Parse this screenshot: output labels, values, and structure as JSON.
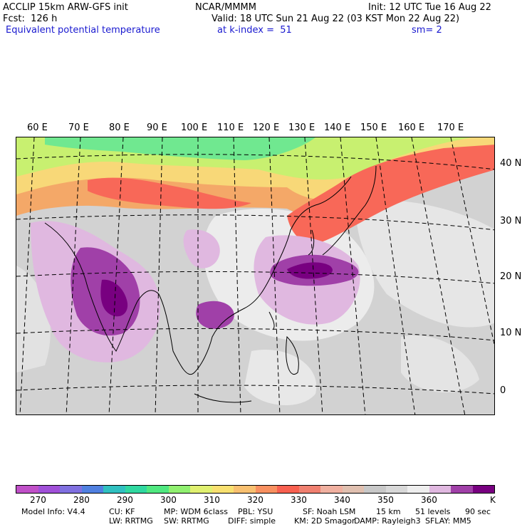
{
  "header": {
    "model": "ACCLIP 15km ARW-GFS init",
    "center": "NCAR/MMMM",
    "init": "Init: 12 UTC Tue 16 Aug 22",
    "fcst": "Fcst:  126 h",
    "valid": "Valid: 18 UTC Sun 21 Aug 22 (03 KST Mon 22 Aug 22)",
    "field": "Equivalent potential temperature",
    "level": "at k-index =  51",
    "smooth": "sm= 2"
  },
  "lon_labels": [
    "60 E",
    "70 E",
    "80 E",
    "90 E",
    "100 E",
    "110 E",
    "120 E",
    "130 E",
    "140 E",
    "150 E",
    "160 E",
    "170 E"
  ],
  "lat_labels": [
    "40 N",
    "30 N",
    "20 N",
    "10 N",
    "0"
  ],
  "colorbar": {
    "colors": [
      "#c050c8",
      "#a050d8",
      "#8070e0",
      "#5080e0",
      "#30c0c0",
      "#30d8a0",
      "#50e880",
      "#90f070",
      "#e0f070",
      "#f8e070",
      "#f8c070",
      "#f89060",
      "#f86050",
      "#f08070",
      "#f0b0a0",
      "#e0c0b0",
      "#c8c8c8",
      "#d8d8d8",
      "#eeeeee",
      "#e0b8e0",
      "#a040a8",
      "#780080"
    ],
    "labels": [
      "270",
      "280",
      "290",
      "300",
      "310",
      "320",
      "330",
      "340",
      "350",
      "360"
    ],
    "unit": "K"
  },
  "model_info": {
    "line1": [
      "Model Info: V4.4",
      "CU: KF",
      "MP: WDM 6class",
      "PBL: YSU",
      "SF: Noah LSM",
      "15 km",
      "51 levels",
      "90 sec"
    ],
    "line2": [
      "LW: RRTMG",
      "SW: RRTMG",
      "DIFF: simple",
      "KM: 2D Smagor",
      "DAMP: Rayleigh3",
      "SFLAY: MM5"
    ]
  }
}
